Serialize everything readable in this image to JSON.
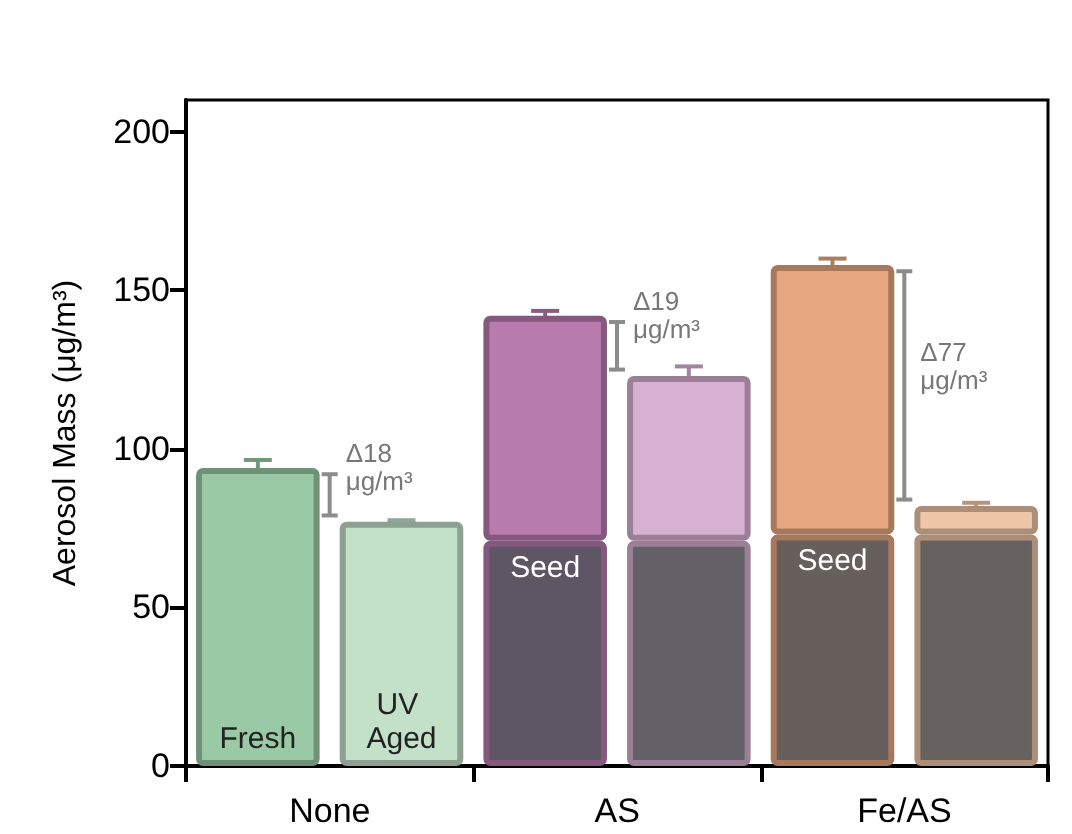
{
  "chart_data": {
    "type": "bar",
    "ylabel": "Aerosol Mass (μg/m³)",
    "categories": [
      "None",
      null,
      "AS",
      null,
      "Fe/AS",
      null
    ],
    "ylim": [
      0,
      210
    ],
    "yticks": [
      0,
      50,
      100,
      150,
      200
    ],
    "stacked": true,
    "grid": false,
    "series": [
      {
        "colors": [
          "#5f5665",
          "#5f5665",
          "#5f5665",
          "#646068",
          "#675f5c",
          "#676260"
        ],
        "values": [
          null,
          null,
          71,
          71,
          73,
          73
        ],
        "value_labels": [
          null,
          null,
          "Seed",
          null,
          "Seed",
          null
        ]
      },
      {
        "colors": [
          "#9ac9a5",
          "#c3e0c9",
          "#b77bae",
          "#d7b1d2",
          "#e6a680",
          "#f0c6a8"
        ],
        "values": [
          94,
          77,
          71,
          52,
          85,
          9
        ],
        "errors": [
          2.5,
          0.5,
          1.5,
          3,
          2,
          1
        ],
        "value_labels": [
          "Fresh",
          "UV Aged",
          null,
          null,
          null,
          null
        ]
      }
    ],
    "annotations": [
      "Δ18 μg/m³",
      "Δ19 μg/m³",
      "Δ77 μg/m³"
    ]
  }
}
